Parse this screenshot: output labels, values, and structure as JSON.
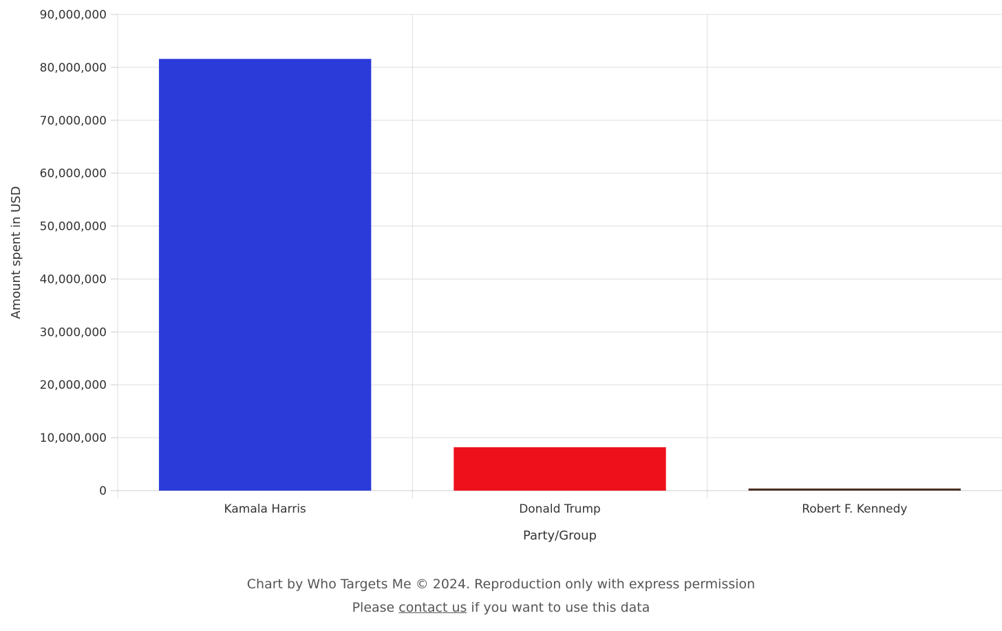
{
  "chart_data": {
    "type": "bar",
    "categories": [
      "Kamala Harris",
      "Donald Trump",
      "Robert F. Kennedy"
    ],
    "values": [
      81600000,
      8200000,
      400000
    ],
    "colors": [
      "#2b3bd9",
      "#ee111c",
      "#4a2f24"
    ],
    "xlabel": "Party/Group",
    "ylabel": "Amount spent in USD",
    "ylim": [
      0,
      90000000
    ],
    "yticks": [
      "0",
      "10,000,000",
      "20,000,000",
      "30,000,000",
      "40,000,000",
      "50,000,000",
      "60,000,000",
      "70,000,000",
      "80,000,000",
      "90,000,000"
    ],
    "grid": true,
    "legend": "none"
  },
  "footer": {
    "credit": "Chart by Who Targets Me © 2024. Reproduction only with express permission",
    "line2_prefix": "Please ",
    "link_text": "contact us",
    "line2_suffix": " if you want to use this data"
  }
}
